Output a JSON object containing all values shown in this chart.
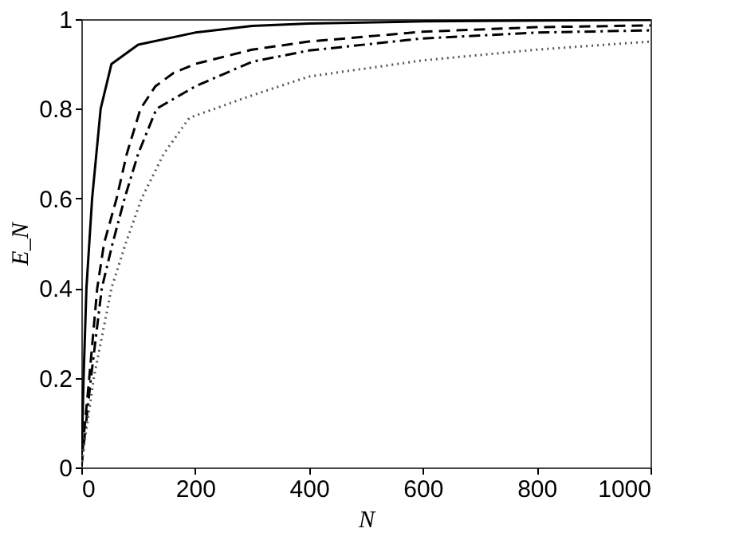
{
  "chart_data": {
    "type": "line",
    "xlabel": "N",
    "ylabel": "E_N",
    "xlim": [
      0,
      1000
    ],
    "ylim": [
      0,
      1
    ],
    "xticks": [
      0,
      200,
      400,
      600,
      800,
      1000
    ],
    "yticks": [
      0,
      0.2,
      0.4,
      0.6,
      0.8,
      1
    ],
    "grid": false,
    "marker": "none",
    "series": [
      {
        "color": "#000000",
        "line_style": "solid",
        "x": [
          0,
          4,
          9,
          19,
          34,
          53,
          100,
          200,
          300,
          400,
          600,
          800,
          1000
        ],
        "values": [
          0,
          0.2,
          0.4,
          0.6,
          0.8,
          0.9,
          0.943,
          0.97,
          0.985,
          0.99,
          0.995,
          0.997,
          0.998
        ]
      },
      {
        "color": "#000000",
        "line_style": "dashed",
        "x": [
          0,
          5,
          14,
          28,
          40,
          62,
          80,
          104,
          130,
          162,
          200,
          300,
          400,
          600,
          800,
          1000
        ],
        "values": [
          0,
          0.08,
          0.2,
          0.4,
          0.5,
          0.6,
          0.7,
          0.8,
          0.85,
          0.88,
          0.9,
          0.932,
          0.95,
          0.972,
          0.982,
          0.986
        ]
      },
      {
        "color": "#000000",
        "line_style": "dashdot",
        "x": [
          0,
          5,
          17,
          36,
          55,
          76,
          100,
          132,
          200,
          300,
          400,
          600,
          800,
          1000
        ],
        "values": [
          0,
          0.06,
          0.2,
          0.4,
          0.5,
          0.6,
          0.7,
          0.8,
          0.85,
          0.905,
          0.93,
          0.957,
          0.97,
          0.975
        ]
      },
      {
        "color": "#555555",
        "line_style": "dotted",
        "x": [
          0,
          5,
          22,
          53,
          78,
          106,
          145,
          190,
          300,
          400,
          600,
          800,
          1000
        ],
        "values": [
          0,
          0.05,
          0.2,
          0.4,
          0.5,
          0.6,
          0.7,
          0.78,
          0.83,
          0.872,
          0.908,
          0.932,
          0.95
        ]
      }
    ]
  }
}
